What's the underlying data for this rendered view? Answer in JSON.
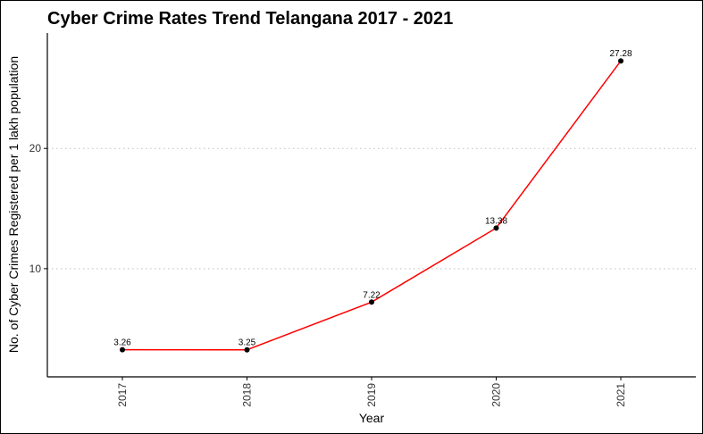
{
  "chart_data": {
    "type": "line",
    "title": "Cyber Crime Rates Trend Telangana 2017 - 2021",
    "xlabel": "Year",
    "ylabel": "No. of Cyber Crimes Registered per 1 lakh population",
    "categories": [
      "2017",
      "2018",
      "2019",
      "2020",
      "2021"
    ],
    "series": [
      {
        "values": [
          3.26,
          3.25,
          7.22,
          13.38,
          27.28
        ]
      }
    ],
    "data_labels": [
      "3.26",
      "3.25",
      "7.22",
      "13.38",
      "27.28"
    ],
    "y_ticks": [
      10,
      20
    ],
    "ylim": [
      1.0,
      29.6
    ],
    "grid": "horizontal-major-dotted",
    "line_color": "#ff0000",
    "point_color": "#000000"
  }
}
